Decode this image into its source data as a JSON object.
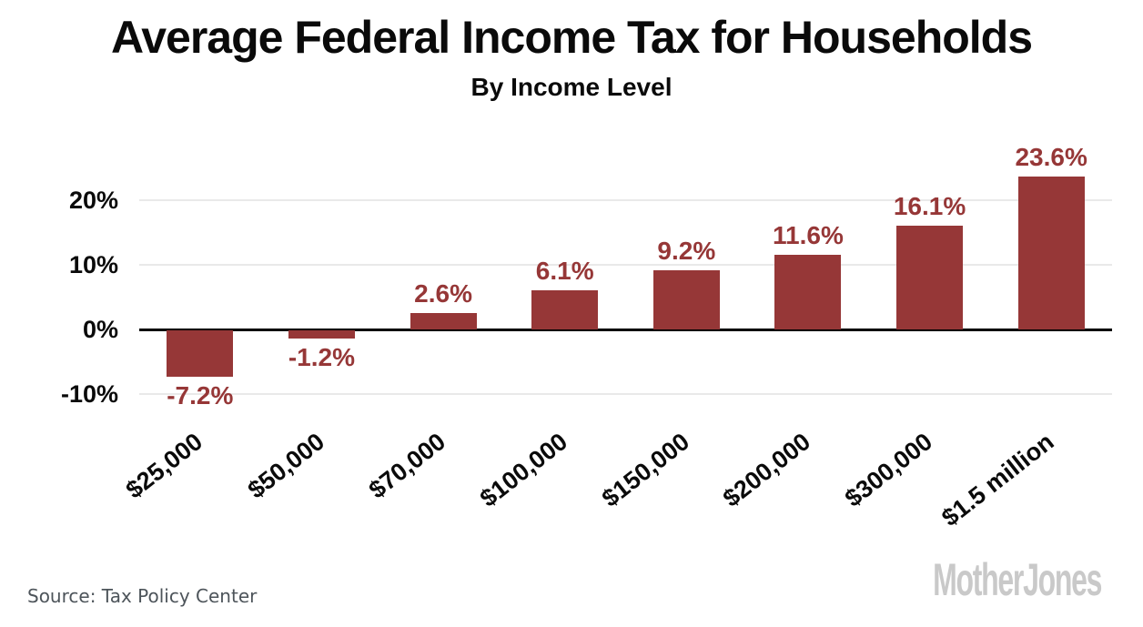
{
  "chart_data": {
    "type": "bar",
    "title": "Average Federal Income Tax for Households",
    "subtitle": "By Income Level",
    "categories": [
      "$25,000",
      "$50,000",
      "$70,000",
      "$100,000",
      "$150,000",
      "$200,000",
      "$300,000",
      "$1.5 million"
    ],
    "values": [
      -7.2,
      -1.2,
      2.6,
      6.1,
      9.2,
      11.6,
      16.1,
      23.6
    ],
    "value_labels": [
      "-7.2%",
      "-1.2%",
      "2.6%",
      "6.1%",
      "9.2%",
      "11.6%",
      "16.1%",
      "23.6%"
    ],
    "y_ticks": [
      {
        "label": "20%",
        "value": 20
      },
      {
        "label": "10%",
        "value": 10
      },
      {
        "label": "0%",
        "value": 0
      },
      {
        "label": "-10%",
        "value": -10
      }
    ],
    "gridline_values": [
      20,
      10,
      -10
    ],
    "ylim": [
      -13,
      30
    ],
    "grid": true,
    "legend": false,
    "xlabel": "",
    "ylabel": "",
    "colors": {
      "bar": "#963737",
      "value_label": "#963737",
      "zero_axis": "#000000",
      "gridline": "#e9e9e9"
    }
  },
  "footer": {
    "source": "Source: Tax Policy Center",
    "logo": "MotherJones"
  }
}
